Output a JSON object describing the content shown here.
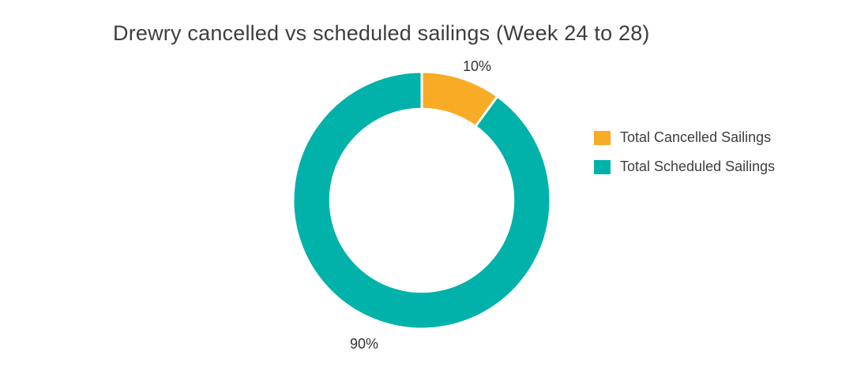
{
  "colors": {
    "background": "#FFFFFF",
    "title_text": "#3E3E3C",
    "label_text": "#333330",
    "slice_border": "#FFFFFF"
  },
  "chart_data": {
    "type": "pie",
    "subtype": "donut",
    "title": "Drewry cancelled vs scheduled sailings (Week 24 to 28)",
    "unit": "%",
    "slices": [
      {
        "label": "Total Cancelled Sailings",
        "value": 10,
        "pct_label": "10%",
        "color": "#F8AB25"
      },
      {
        "label": "Total Scheduled Sailings",
        "value": 90,
        "pct_label": "90%",
        "color": "#00B2A9"
      }
    ],
    "start_angle_deg": 0,
    "direction": "clockwise",
    "inner_radius_ratio": 0.71,
    "slice_border_width": 3,
    "legend_position": "right",
    "data_labels": "percent-outside",
    "grid": false
  }
}
